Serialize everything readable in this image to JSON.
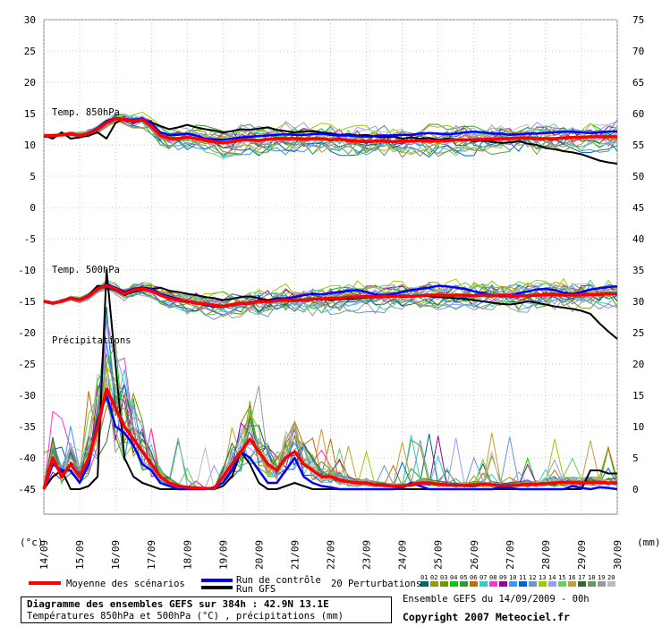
{
  "chart_data": {
    "type": "line",
    "title": "Diagramme des ensembles GEFS sur 384h : 42.9N 13.1E",
    "subtitle": "Températures 850hPa et 500hPa (°C) , précipitations (mm)",
    "ylabel_left": "(°c)",
    "ylabel_right": "(mm)",
    "ylim_left": [
      -45,
      30
    ],
    "yticks_left": [
      "30",
      "25",
      "20",
      "15",
      "10",
      "5",
      "0",
      "-5",
      "-10",
      "-15",
      "-20",
      "-25",
      "-30",
      "-35",
      "-40",
      "-45"
    ],
    "yticks_right": [
      "75",
      "70",
      "65",
      "60",
      "55",
      "50",
      "45",
      "40",
      "35",
      "30",
      "25",
      "20",
      "15",
      "10",
      "5",
      "0"
    ],
    "x_dates": [
      "14/09",
      "15/09",
      "16/09",
      "17/09",
      "18/09",
      "19/09",
      "20/09",
      "21/09",
      "22/09",
      "23/09",
      "24/09",
      "25/09",
      "26/09",
      "27/09",
      "28/09",
      "29/09",
      "30/09"
    ],
    "grid": true,
    "annotations": {
      "t850": "Temp. 850hPa",
      "t500": "Temp. 500hPa",
      "precip": "Précipitations"
    },
    "legend": {
      "mean": "Moyenne des scénarios",
      "control": "Run de contrôle",
      "gfs": "Run GFS",
      "perturbations": "20 Perturbations",
      "members": [
        "01",
        "02",
        "03",
        "04",
        "05",
        "06",
        "07",
        "08",
        "09",
        "10",
        "11",
        "12",
        "13",
        "14",
        "15",
        "16",
        "17",
        "18",
        "19",
        "20"
      ],
      "member_colors": [
        "#006666",
        "#999900",
        "#669900",
        "#00cc00",
        "#339933",
        "#cc6600",
        "#33cccc",
        "#ff33cc",
        "#990099",
        "#3399ff",
        "#0066cc",
        "#6699cc",
        "#99cc00",
        "#9999ff",
        "#66cc66",
        "#cc9933",
        "#336633",
        "#669966",
        "#999999",
        "#bbbbbb"
      ]
    },
    "colors": {
      "mean": "#ff0000",
      "control": "#0000ff",
      "gfs": "#000000"
    },
    "series": [
      {
        "name": "Moyenne des scénarios",
        "t850": [
          11.5,
          11.5,
          11.6,
          11.8,
          11.5,
          11.8,
          12.5,
          13.5,
          14.2,
          14.0,
          13.8,
          14.0,
          13.0,
          11.5,
          11.0,
          11.0,
          11.2,
          11.0,
          10.8,
          10.5,
          10.3,
          10.5,
          10.8,
          10.8,
          10.7,
          10.9,
          11.0,
          11.0,
          11.0,
          10.9,
          11.0,
          11.0,
          10.8,
          10.9,
          10.7,
          10.6,
          10.5,
          10.6,
          10.6,
          10.5,
          10.6,
          10.6,
          10.7,
          10.6,
          10.6,
          10.7,
          10.8,
          10.8,
          10.8,
          10.9,
          10.9,
          11.0,
          11.0,
          11.1,
          11.1,
          11.0,
          11.0,
          11.0,
          11.1,
          11.2,
          11.2,
          11.3,
          11.3,
          11.3,
          11.3
        ],
        "t500": [
          -15.0,
          -15.3,
          -15.0,
          -14.5,
          -14.8,
          -14.2,
          -13.0,
          -12.5,
          -13.0,
          -13.8,
          -13.2,
          -13.0,
          -13.3,
          -14.0,
          -14.5,
          -14.8,
          -15.0,
          -15.3,
          -15.4,
          -15.6,
          -15.8,
          -15.5,
          -15.3,
          -15.3,
          -15.0,
          -15.1,
          -14.9,
          -14.8,
          -14.9,
          -14.8,
          -14.6,
          -14.6,
          -14.5,
          -14.5,
          -14.3,
          -14.3,
          -14.2,
          -14.3,
          -14.2,
          -14.2,
          -14.1,
          -14.2,
          -14.1,
          -14.0,
          -14.0,
          -14.1,
          -14.0,
          -14.0,
          -14.1,
          -14.0,
          -14.1,
          -14.0,
          -14.0,
          -14.1,
          -14.1,
          -14.0,
          -13.9,
          -13.9,
          -14.0,
          -14.0,
          -14.0,
          -13.9,
          -13.9,
          -13.8,
          -13.8
        ],
        "precip": [
          0,
          5,
          2,
          4,
          2,
          5,
          10,
          16,
          13,
          10,
          8,
          6,
          4,
          2,
          1,
          0.5,
          0.3,
          0.2,
          0.1,
          0.1,
          2,
          4,
          6,
          8,
          6,
          4,
          3,
          5,
          6,
          4,
          3,
          2,
          2,
          1.5,
          1.2,
          1,
          1,
          0.7,
          0.6,
          0.5,
          0.5,
          0.7,
          1,
          1,
          0.8,
          0.7,
          0.6,
          0.6,
          0.7,
          0.8,
          0.7,
          0.6,
          0.6,
          0.7,
          0.8,
          0.8,
          0.9,
          1,
          1.1,
          1.1,
          1,
          1.1,
          1.1,
          1,
          1
        ]
      },
      {
        "name": "Run de contrôle",
        "t850": [
          11.3,
          11.4,
          11.6,
          11.7,
          11.5,
          11.9,
          12.7,
          13.8,
          14.3,
          14.1,
          14.0,
          14.2,
          13.4,
          12.0,
          11.6,
          11.6,
          11.8,
          11.5,
          11.0,
          10.9,
          10.8,
          11.0,
          11.2,
          11.3,
          11.4,
          11.5,
          11.6,
          11.7,
          11.6,
          11.6,
          11.7,
          11.8,
          11.6,
          11.5,
          11.5,
          11.4,
          11.3,
          11.4,
          11.5,
          11.5,
          11.6,
          11.6,
          11.8,
          11.9,
          11.8,
          11.7,
          11.8,
          12.0,
          12.1,
          12.0,
          11.8,
          11.8,
          11.6,
          11.7,
          11.8,
          11.8,
          11.9,
          12.0,
          12.1,
          12.1,
          12.0,
          11.9,
          12.0,
          12.1,
          12.2
        ],
        "t500": [
          -14.9,
          -15.2,
          -14.9,
          -14.4,
          -14.7,
          -14.1,
          -13.0,
          -12.3,
          -12.8,
          -13.5,
          -13.0,
          -12.8,
          -13.0,
          -13.8,
          -14.2,
          -14.6,
          -15.0,
          -15.2,
          -15.6,
          -15.8,
          -15.9,
          -15.6,
          -15.4,
          -15.3,
          -14.8,
          -15.0,
          -14.6,
          -14.5,
          -14.3,
          -14.0,
          -13.8,
          -13.9,
          -13.7,
          -13.5,
          -13.3,
          -13.2,
          -13.5,
          -13.9,
          -14.0,
          -13.8,
          -13.5,
          -13.2,
          -13.0,
          -12.8,
          -12.5,
          -12.6,
          -12.8,
          -13.0,
          -13.4,
          -13.7,
          -14.0,
          -14.2,
          -14.0,
          -13.7,
          -13.4,
          -13.1,
          -13.0,
          -13.2,
          -13.6,
          -13.8,
          -13.5,
          -13.1,
          -12.9,
          -12.7,
          -12.6
        ],
        "precip": [
          0,
          4,
          3,
          3,
          1,
          4,
          11,
          15,
          10,
          9,
          7,
          4,
          3,
          1,
          0.5,
          0,
          0,
          0,
          0,
          0.3,
          1,
          3,
          6,
          5,
          3,
          1,
          1,
          3,
          5,
          2,
          1,
          0.5,
          0.3,
          0,
          0,
          0,
          0,
          0,
          0,
          0,
          0.2,
          1,
          0.5,
          0,
          0,
          0,
          0,
          0,
          0,
          0,
          0,
          0.3,
          0.2,
          0,
          0,
          0,
          0,
          0,
          0,
          0.5,
          0.2,
          0,
          0.3,
          0.2,
          0
        ]
      },
      {
        "name": "Run GFS",
        "t850": [
          11.5,
          11.0,
          12.0,
          11.0,
          11.2,
          11.5,
          12.0,
          11.0,
          13.5,
          14.2,
          13.5,
          14.0,
          13.6,
          13.0,
          12.5,
          12.8,
          13.2,
          12.8,
          12.5,
          12.3,
          12.0,
          12.2,
          12.5,
          12.4,
          12.6,
          12.8,
          12.4,
          12.2,
          12.0,
          12.1,
          12.2,
          12.0,
          11.8,
          11.6,
          11.7,
          11.5,
          11.6,
          11.3,
          11.2,
          11.3,
          11.0,
          11.2,
          11.0,
          11.1,
          10.8,
          11.0,
          10.9,
          10.8,
          10.6,
          10.7,
          10.5,
          10.3,
          10.4,
          10.6,
          10.2,
          10.0,
          9.5,
          9.3,
          9.0,
          8.8,
          8.5,
          8.0,
          7.5,
          7.2,
          7.0
        ],
        "t500": [
          -15.0,
          -15.4,
          -14.8,
          -14.5,
          -14.8,
          -14.0,
          -12.5,
          -12.8,
          -13.2,
          -14.0,
          -13.5,
          -13.2,
          -13.0,
          -12.8,
          -13.3,
          -13.5,
          -13.8,
          -14.0,
          -14.3,
          -14.5,
          -14.8,
          -14.6,
          -14.3,
          -14.2,
          -14.5,
          -14.8,
          -14.5,
          -14.6,
          -14.8,
          -14.7,
          -14.5,
          -14.6,
          -14.8,
          -14.7,
          -14.6,
          -14.5,
          -14.4,
          -14.3,
          -14.2,
          -14.1,
          -14.3,
          -14.2,
          -14.1,
          -14.2,
          -14.3,
          -14.4,
          -14.5,
          -14.6,
          -14.8,
          -15.0,
          -15.2,
          -15.4,
          -15.5,
          -15.3,
          -15.0,
          -15.2,
          -15.5,
          -15.8,
          -16.0,
          -16.2,
          -16.5,
          -17.0,
          -18.5,
          -19.8,
          -21.0
        ],
        "precip": [
          0,
          2,
          3,
          0,
          0,
          0.5,
          2,
          35,
          20,
          5,
          2,
          1,
          0.5,
          0,
          0,
          0,
          0,
          0,
          0,
          0,
          0.5,
          2,
          6,
          4,
          1,
          0,
          0,
          0.5,
          1,
          0.5,
          0,
          0,
          0,
          0,
          0,
          0,
          0,
          0,
          0,
          0,
          0,
          0,
          0,
          0,
          0,
          0,
          0,
          0,
          0,
          0,
          0,
          0,
          0,
          0,
          0,
          0,
          0,
          0,
          0,
          0,
          0,
          3,
          3,
          2.5,
          2.5
        ]
      }
    ]
  },
  "footer": {
    "run_info": "Ensemble GEFS du 14/09/2009 - 00h",
    "copyright": "Copyright 2007 Meteociel.fr"
  }
}
